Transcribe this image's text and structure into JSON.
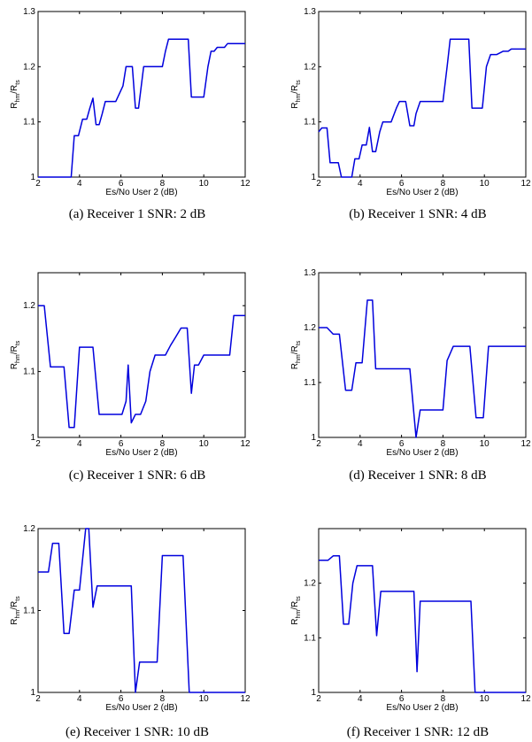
{
  "figure": {
    "panels": [
      {
        "caption": "(a) Receiver 1 SNR: 2 dB"
      },
      {
        "caption": "(b) Receiver 1 SNR: 4 dB"
      },
      {
        "caption": "(c) Receiver 1 SNR: 6 dB"
      },
      {
        "caption": "(d) Receiver 1 SNR: 8 dB"
      },
      {
        "caption": "(e) Receiver 1 SNR: 10 dB"
      },
      {
        "caption": "(f) Receiver 1 SNR: 12 dB"
      }
    ]
  },
  "chart_data": [
    {
      "type": "line",
      "caption": "(a) Receiver 1 SNR: 2 dB",
      "xlabel": "Es/No User 2 (dB)",
      "ylabel": {
        "main": "R",
        "sub1": "hm",
        "sep": "/R",
        "sub2": "ts"
      },
      "xlim": [
        2,
        12
      ],
      "ylim": [
        1,
        1.3
      ],
      "xticks": [
        "2",
        "4",
        "6",
        "8",
        "10",
        "12"
      ],
      "yticks": [
        "1",
        "1.1",
        "1.2",
        "1.3"
      ],
      "series": [
        {
          "color": "#0000dd",
          "x": [
            2,
            3.6,
            3.75,
            3.95,
            4.15,
            4.35,
            4.5,
            4.65,
            4.8,
            4.95,
            5.1,
            5.25,
            5.5,
            5.75,
            6.1,
            6.25,
            6.4,
            6.55,
            6.7,
            6.85,
            7.1,
            7.25,
            7.5,
            7.75,
            8.0,
            8.15,
            8.3,
            8.5,
            9.0,
            9.25,
            9.4,
            9.6,
            9.8,
            10.0,
            10.2,
            10.35,
            10.5,
            10.65,
            10.85,
            11.0,
            11.15,
            11.3,
            11.5,
            11.65,
            12.0
          ],
          "y": [
            1.0,
            1.0,
            1.075,
            1.075,
            1.105,
            1.105,
            1.125,
            1.143,
            1.095,
            1.095,
            1.115,
            1.137,
            1.137,
            1.137,
            1.165,
            1.2,
            1.2,
            1.2,
            1.125,
            1.125,
            1.2,
            1.2,
            1.2,
            1.2,
            1.2,
            1.228,
            1.25,
            1.25,
            1.25,
            1.25,
            1.145,
            1.145,
            1.145,
            1.145,
            1.2,
            1.228,
            1.228,
            1.235,
            1.235,
            1.235,
            1.242,
            1.242,
            1.242,
            1.242,
            1.242
          ]
        }
      ]
    },
    {
      "type": "line",
      "caption": "(b) Receiver 1 SNR: 4 dB",
      "xlabel": "Es/No User 2 (dB)",
      "ylabel": {
        "main": "R",
        "sub1": "hm",
        "sep": "/R",
        "sub2": "ts"
      },
      "xlim": [
        2,
        12
      ],
      "ylim": [
        1,
        1.3
      ],
      "xticks": [
        "2",
        "4",
        "6",
        "8",
        "10",
        "12"
      ],
      "yticks": [
        "1",
        "1.1",
        "1.2",
        "1.3"
      ],
      "series": [
        {
          "color": "#0000dd",
          "x": [
            2.0,
            2.15,
            2.4,
            2.55,
            2.7,
            2.95,
            3.1,
            3.35,
            3.6,
            3.75,
            3.95,
            4.1,
            4.3,
            4.45,
            4.6,
            4.75,
            4.95,
            5.1,
            5.3,
            5.5,
            5.75,
            5.9,
            6.05,
            6.2,
            6.4,
            6.6,
            6.7,
            6.9,
            7.1,
            7.3,
            7.5,
            7.75,
            8.0,
            8.2,
            8.35,
            8.5,
            9.0,
            9.25,
            9.4,
            9.6,
            9.75,
            9.9,
            10.1,
            10.3,
            10.6,
            10.9,
            11.15,
            11.3,
            11.6,
            12.0
          ],
          "y": [
            1.082,
            1.089,
            1.089,
            1.026,
            1.026,
            1.026,
            1.0,
            1.0,
            1.0,
            1.033,
            1.033,
            1.058,
            1.058,
            1.09,
            1.046,
            1.046,
            1.082,
            1.1,
            1.1,
            1.1,
            1.125,
            1.137,
            1.137,
            1.137,
            1.093,
            1.093,
            1.115,
            1.137,
            1.137,
            1.137,
            1.137,
            1.137,
            1.137,
            1.2,
            1.25,
            1.25,
            1.25,
            1.25,
            1.125,
            1.125,
            1.125,
            1.125,
            1.2,
            1.222,
            1.222,
            1.228,
            1.228,
            1.232,
            1.232,
            1.232
          ]
        }
      ]
    },
    {
      "type": "line",
      "caption": "(c) Receiver 1 SNR: 6 dB",
      "xlabel": "Es/No User 2 (dB)",
      "ylabel": {
        "main": "R",
        "sub1": "hm",
        "sep": "/R",
        "sub2": "ts"
      },
      "xlim": [
        2,
        12
      ],
      "ylim": [
        1,
        1.25
      ],
      "xticks": [
        "2",
        "4",
        "6",
        "8",
        "10",
        "12"
      ],
      "yticks": [
        "1",
        "1.1",
        "1.2"
      ],
      "series": [
        {
          "color": "#0000dd",
          "x": [
            2.0,
            2.3,
            2.6,
            3.0,
            3.25,
            3.5,
            3.75,
            4.0,
            4.25,
            4.65,
            4.95,
            5.3,
            5.9,
            6.05,
            6.25,
            6.35,
            6.5,
            6.7,
            6.95,
            7.2,
            7.4,
            7.65,
            7.9,
            8.15,
            8.4,
            8.6,
            8.9,
            9.2,
            9.4,
            9.55,
            9.75,
            10.0,
            10.3,
            10.6,
            11.0,
            11.25,
            11.45,
            11.6,
            12.0
          ],
          "y": [
            1.2,
            1.2,
            1.107,
            1.107,
            1.107,
            1.015,
            1.015,
            1.137,
            1.137,
            1.137,
            1.035,
            1.035,
            1.035,
            1.035,
            1.055,
            1.11,
            1.022,
            1.035,
            1.035,
            1.055,
            1.1,
            1.125,
            1.125,
            1.125,
            1.14,
            1.15,
            1.166,
            1.166,
            1.067,
            1.11,
            1.11,
            1.125,
            1.125,
            1.125,
            1.125,
            1.125,
            1.185,
            1.185,
            1.185
          ]
        }
      ]
    },
    {
      "type": "line",
      "caption": "(d) Receiver 1 SNR: 8 dB",
      "xlabel": "Es/No User 2 (dB)",
      "ylabel": {
        "main": "R",
        "sub1": "hm",
        "sep": "/R",
        "sub2": "ts"
      },
      "xlim": [
        2,
        12
      ],
      "ylim": [
        1,
        1.3
      ],
      "xticks": [
        "2",
        "4",
        "6",
        "8",
        "10",
        "12"
      ],
      "yticks": [
        "1",
        "1.1",
        "1.2",
        "1.3"
      ],
      "series": [
        {
          "color": "#0000dd",
          "x": [
            2.0,
            2.4,
            2.7,
            3.0,
            3.3,
            3.6,
            3.8,
            4.1,
            4.35,
            4.6,
            4.75,
            5.2,
            6.0,
            6.4,
            6.7,
            6.9,
            7.2,
            7.7,
            8.0,
            8.2,
            8.5,
            9.0,
            9.3,
            9.6,
            9.75,
            9.95,
            10.2,
            11.0,
            12.0
          ],
          "y": [
            1.2,
            1.2,
            1.188,
            1.188,
            1.086,
            1.086,
            1.136,
            1.136,
            1.25,
            1.25,
            1.125,
            1.125,
            1.125,
            1.125,
            1.0,
            1.05,
            1.05,
            1.05,
            1.05,
            1.14,
            1.166,
            1.166,
            1.166,
            1.036,
            1.036,
            1.036,
            1.166,
            1.166,
            1.166
          ]
        }
      ]
    },
    {
      "type": "line",
      "caption": "(e) Receiver 1 SNR: 10 dB",
      "xlabel": "Es/No User 2 (dB)",
      "ylabel": {
        "main": "R",
        "sub1": "hm",
        "sep": "/R",
        "sub2": "ts"
      },
      "xlim": [
        2,
        12
      ],
      "ylim": [
        1,
        1.2
      ],
      "xticks": [
        "2",
        "4",
        "6",
        "8",
        "10",
        "12"
      ],
      "yticks": [
        "1",
        "1.1",
        "1.2"
      ],
      "series": [
        {
          "color": "#0000dd",
          "x": [
            2.0,
            2.5,
            2.7,
            3.0,
            3.25,
            3.5,
            3.75,
            4.0,
            4.3,
            4.45,
            4.65,
            4.85,
            5.1,
            5.6,
            6.0,
            6.5,
            6.7,
            6.9,
            7.3,
            7.75,
            8.0,
            8.25,
            8.6,
            9.0,
            9.3,
            9.5,
            9.8,
            10.0,
            11.0,
            12.0
          ],
          "y": [
            1.147,
            1.147,
            1.182,
            1.182,
            1.072,
            1.072,
            1.125,
            1.125,
            1.2,
            1.2,
            1.104,
            1.13,
            1.13,
            1.13,
            1.13,
            1.13,
            1.0,
            1.037,
            1.037,
            1.037,
            1.167,
            1.167,
            1.167,
            1.167,
            1.0,
            1.0,
            1.0,
            1.0,
            1.0,
            1.0
          ]
        }
      ]
    },
    {
      "type": "line",
      "caption": "(f) Receiver 1 SNR: 12 dB",
      "xlabel": "Es/No User 2 (dB)",
      "ylabel": {
        "main": "R",
        "sub1": "hm",
        "sep": "/R",
        "sub2": "ts"
      },
      "xlim": [
        2,
        12
      ],
      "ylim": [
        1,
        1.3
      ],
      "xticks": [
        "2",
        "4",
        "6",
        "8",
        "10",
        "12"
      ],
      "yticks": [
        "1",
        "1.1",
        "1.2"
      ],
      "series": [
        {
          "color": "#0000dd",
          "x": [
            2.0,
            2.45,
            2.7,
            3.0,
            3.2,
            3.45,
            3.65,
            3.85,
            4.1,
            4.6,
            4.8,
            5.0,
            5.5,
            6.0,
            6.6,
            6.75,
            6.9,
            7.5,
            8.0,
            9.0,
            9.35,
            9.55,
            10.0,
            11.0,
            12.0
          ],
          "y": [
            1.242,
            1.242,
            1.25,
            1.25,
            1.125,
            1.125,
            1.2,
            1.232,
            1.232,
            1.232,
            1.104,
            1.185,
            1.185,
            1.185,
            1.185,
            1.038,
            1.167,
            1.167,
            1.167,
            1.167,
            1.167,
            1.0,
            1.0,
            1.0,
            1.0
          ]
        }
      ]
    }
  ]
}
